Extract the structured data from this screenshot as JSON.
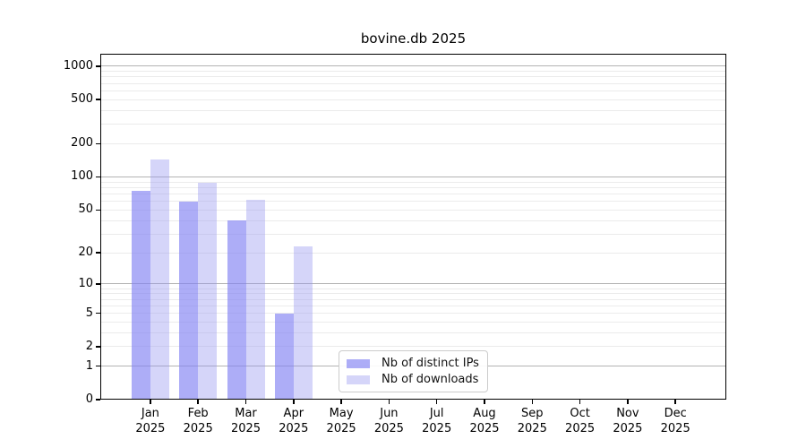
{
  "chart_data": {
    "type": "bar",
    "title": "bovine.db 2025",
    "categories": [
      "Jan",
      "Feb",
      "Mar",
      "Apr",
      "May",
      "Jun",
      "Jul",
      "Aug",
      "Sep",
      "Oct",
      "Nov",
      "Dec"
    ],
    "category_year": "2025",
    "series": [
      {
        "name": "Nb of distinct IPs",
        "color": "rgba(130,130,243,0.66)",
        "values": [
          75,
          60,
          40,
          5,
          0,
          0,
          0,
          0,
          0,
          0,
          0,
          0
        ]
      },
      {
        "name": "Nb of downloads",
        "color": "rgba(150,150,240,0.40)",
        "values": [
          145,
          88,
          62,
          23,
          0,
          0,
          0,
          0,
          0,
          0,
          0,
          0
        ]
      }
    ],
    "xlabel": "",
    "ylabel": "",
    "y_scale": "log1p",
    "ylim": [
      0,
      1300
    ],
    "y_ticks": [
      0,
      1,
      2,
      5,
      10,
      20,
      50,
      100,
      200,
      500,
      1000
    ],
    "y_major_gridlines": [
      1,
      10,
      100,
      1000
    ],
    "y_minor_gridlines": [
      2,
      3,
      4,
      5,
      6,
      7,
      8,
      9,
      20,
      30,
      40,
      50,
      60,
      70,
      80,
      90,
      200,
      300,
      400,
      500,
      600,
      700,
      800,
      900
    ],
    "grid": true,
    "legend_position": "lower center",
    "colors": {
      "major_gridline": "#b3b3b3",
      "minor_gridline": "#ebebeb",
      "text": "#000000",
      "legend_border": "#cccccc"
    }
  }
}
